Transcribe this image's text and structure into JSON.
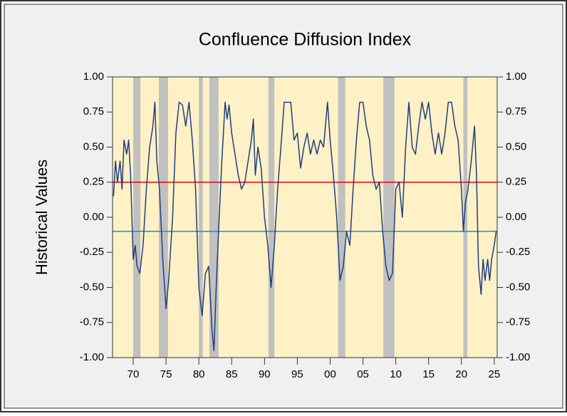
{
  "chart_data": {
    "type": "line",
    "title": "Confluence Diffusion Index",
    "y_label": "Historical Values",
    "xlim": [
      1966.85,
      2025.45
    ],
    "ylim": [
      -1,
      1
    ],
    "y2lim": [
      -1,
      1
    ],
    "xticks": [
      {
        "value": 1970,
        "label": "70"
      },
      {
        "value": 1975,
        "label": "75"
      },
      {
        "value": 1980,
        "label": "80"
      },
      {
        "value": 1985,
        "label": "85"
      },
      {
        "value": 1990,
        "label": "90"
      },
      {
        "value": 1995,
        "label": "95"
      },
      {
        "value": 2000,
        "label": "00"
      },
      {
        "value": 2005,
        "label": "05"
      },
      {
        "value": 2010,
        "label": "10"
      },
      {
        "value": 2015,
        "label": "15"
      },
      {
        "value": 2020,
        "label": "20"
      },
      {
        "value": 2025,
        "label": "25"
      }
    ],
    "yticks": [
      {
        "value": 1,
        "label": "1.00"
      },
      {
        "value": 0.75,
        "label": "0.75"
      },
      {
        "value": 0.5,
        "label": "0.50"
      },
      {
        "value": 0.25,
        "label": "0.25"
      },
      {
        "value": 0,
        "label": "0.00"
      },
      {
        "value": -0.25,
        "label": "-0.25"
      },
      {
        "value": -0.5,
        "label": "-0.50"
      },
      {
        "value": -0.75,
        "label": "-0.75"
      },
      {
        "value": -1,
        "label": "-1.00"
      }
    ],
    "y2ticks": [
      {
        "value": 1,
        "label": "1.00"
      },
      {
        "value": 0.75,
        "label": "0.75"
      },
      {
        "value": 0.5,
        "label": "0.50"
      },
      {
        "value": 0.25,
        "label": "0.25"
      },
      {
        "value": 0,
        "label": "0.00"
      },
      {
        "value": -0.25,
        "label": "-0.25"
      },
      {
        "value": -0.5,
        "label": "-0.50"
      },
      {
        "value": -0.75,
        "label": "-0.75"
      },
      {
        "value": -1,
        "label": "-1.00"
      }
    ],
    "background": "#fff1c6",
    "band_color": "#c0c0c0",
    "recession_bands": [
      [
        1970.0,
        1971.1
      ],
      [
        1973.9,
        1975.3
      ],
      [
        1980.0,
        1980.6
      ],
      [
        1981.6,
        1983.0
      ],
      [
        1990.6,
        1991.5
      ],
      [
        2001.2,
        2002.3
      ],
      [
        2008.1,
        2009.8
      ],
      [
        2020.3,
        2020.9
      ]
    ],
    "reference_lines": [
      {
        "value": 0.25,
        "color": "#e8000b"
      },
      {
        "value": -0.1,
        "color": "#1f8ec2"
      }
    ],
    "x": [
      1967.0,
      1967.3,
      1967.6,
      1968.0,
      1968.3,
      1968.6,
      1969.0,
      1969.3,
      1969.6,
      1970.0,
      1970.3,
      1970.6,
      1971.0,
      1971.5,
      1972.0,
      1972.5,
      1973.0,
      1973.3,
      1973.6,
      1974.0,
      1974.5,
      1975.0,
      1975.4,
      1976.0,
      1976.5,
      1977.0,
      1977.5,
      1978.0,
      1978.5,
      1979.0,
      1979.5,
      1980.0,
      1980.5,
      1981.0,
      1981.5,
      1982.0,
      1982.3,
      1982.6,
      1983.0,
      1983.5,
      1984.0,
      1984.3,
      1984.6,
      1985.0,
      1985.5,
      1986.0,
      1986.5,
      1987.0,
      1987.5,
      1988.0,
      1988.3,
      1988.6,
      1989.0,
      1989.5,
      1990.0,
      1990.5,
      1991.0,
      1991.5,
      1992.0,
      1992.5,
      1993.0,
      1994.0,
      1994.5,
      1995.0,
      1995.5,
      1996.0,
      1996.5,
      1997.0,
      1997.5,
      1998.0,
      1998.5,
      1999.0,
      1999.6,
      2000.0,
      2000.5,
      2001.0,
      2001.5,
      2002.0,
      2002.5,
      2003.0,
      2003.5,
      2004.0,
      2004.5,
      2005.0,
      2005.5,
      2006.0,
      2006.5,
      2007.0,
      2007.5,
      2008.0,
      2008.5,
      2009.0,
      2009.5,
      2010.0,
      2010.5,
      2011.0,
      2011.5,
      2012.0,
      2012.5,
      2013.0,
      2013.5,
      2014.0,
      2014.5,
      2015.0,
      2015.5,
      2016.0,
      2016.5,
      2017.0,
      2017.5,
      2018.0,
      2018.5,
      2019.0,
      2019.5,
      2020.0,
      2020.3,
      2020.6,
      2021.0,
      2021.5,
      2022.0,
      2022.3,
      2022.6,
      2023.0,
      2023.3,
      2023.6,
      2024.0,
      2024.3,
      2024.6,
      2025.0,
      2025.3
    ],
    "series": [
      {
        "color": "#1f3f7f",
        "values": [
          0.15,
          0.4,
          0.25,
          0.4,
          0.2,
          0.55,
          0.45,
          0.55,
          0.3,
          -0.3,
          -0.2,
          -0.35,
          -0.4,
          -0.2,
          0.2,
          0.5,
          0.65,
          0.82,
          0.4,
          0.2,
          -0.3,
          -0.65,
          -0.45,
          0.0,
          0.6,
          0.82,
          0.8,
          0.65,
          0.82,
          0.55,
          0.2,
          -0.5,
          -0.7,
          -0.4,
          -0.35,
          -0.8,
          -0.95,
          -0.55,
          -0.1,
          0.4,
          0.82,
          0.7,
          0.8,
          0.6,
          0.45,
          0.3,
          0.2,
          0.25,
          0.4,
          0.55,
          0.7,
          0.3,
          0.5,
          0.35,
          0.0,
          -0.2,
          -0.5,
          -0.2,
          0.2,
          0.5,
          0.82,
          0.82,
          0.55,
          0.6,
          0.35,
          0.5,
          0.6,
          0.45,
          0.55,
          0.45,
          0.55,
          0.5,
          0.82,
          0.55,
          0.3,
          0.0,
          -0.45,
          -0.35,
          -0.1,
          -0.2,
          0.2,
          0.55,
          0.82,
          0.82,
          0.65,
          0.55,
          0.3,
          0.2,
          0.25,
          -0.1,
          -0.35,
          -0.45,
          -0.4,
          0.2,
          0.25,
          0.0,
          0.5,
          0.82,
          0.5,
          0.45,
          0.65,
          0.82,
          0.7,
          0.82,
          0.6,
          0.45,
          0.6,
          0.45,
          0.6,
          0.82,
          0.82,
          0.65,
          0.55,
          0.2,
          -0.1,
          0.1,
          0.2,
          0.4,
          0.65,
          0.3,
          -0.35,
          -0.55,
          -0.3,
          -0.45,
          -0.3,
          -0.45,
          -0.3,
          -0.2,
          -0.1
        ]
      }
    ]
  }
}
